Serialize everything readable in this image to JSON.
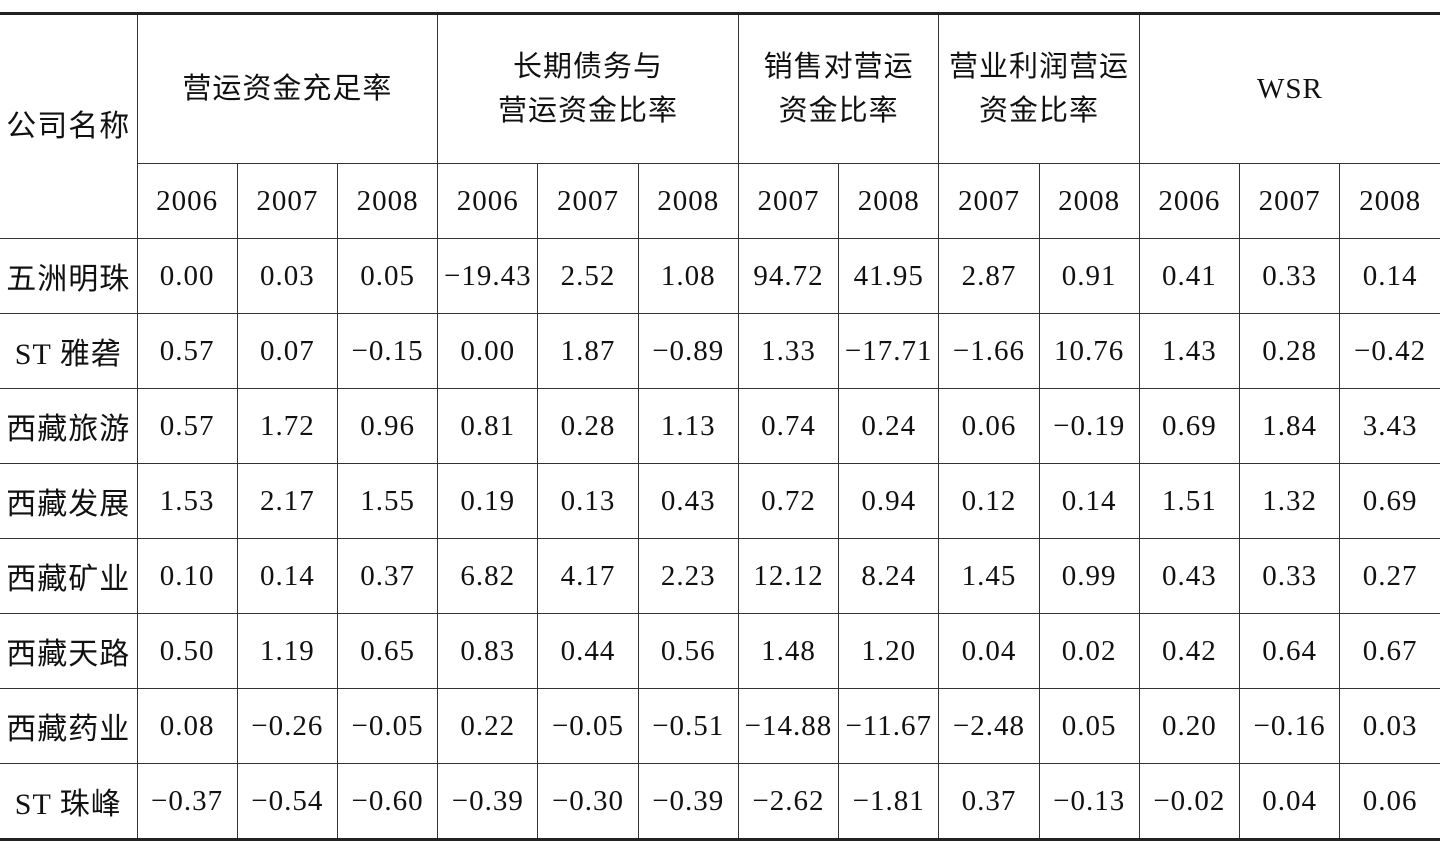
{
  "table": {
    "header": {
      "company": "公司名称",
      "groups": [
        {
          "title": "营运资金充足率",
          "years": [
            "2006",
            "2007",
            "2008"
          ]
        },
        {
          "title": "长期债务与\n营运资金比率",
          "years": [
            "2006",
            "2007",
            "2008"
          ]
        },
        {
          "title": "销售对营运\n资金比率",
          "years": [
            "2007",
            "2008"
          ]
        },
        {
          "title": "营业利润营运\n资金比率",
          "years": [
            "2007",
            "2008"
          ]
        },
        {
          "title": "WSR",
          "years": [
            "2006",
            "2007",
            "2008"
          ]
        }
      ]
    },
    "rows": [
      {
        "name": "五洲明珠",
        "values": [
          "0.00",
          "0.03",
          "0.05",
          "−19.43",
          "2.52",
          "1.08",
          "94.72",
          "41.95",
          "2.87",
          "0.91",
          "0.41",
          "0.33",
          "0.14"
        ]
      },
      {
        "name": "ST 雅砻",
        "values": [
          "0.57",
          "0.07",
          "−0.15",
          "0.00",
          "1.87",
          "−0.89",
          "1.33",
          "−17.71",
          "−1.66",
          "10.76",
          "1.43",
          "0.28",
          "−0.42"
        ]
      },
      {
        "name": "西藏旅游",
        "values": [
          "0.57",
          "1.72",
          "0.96",
          "0.81",
          "0.28",
          "1.13",
          "0.74",
          "0.24",
          "0.06",
          "−0.19",
          "0.69",
          "1.84",
          "3.43"
        ]
      },
      {
        "name": "西藏发展",
        "values": [
          "1.53",
          "2.17",
          "1.55",
          "0.19",
          "0.13",
          "0.43",
          "0.72",
          "0.94",
          "0.12",
          "0.14",
          "1.51",
          "1.32",
          "0.69"
        ]
      },
      {
        "name": "西藏矿业",
        "values": [
          "0.10",
          "0.14",
          "0.37",
          "6.82",
          "4.17",
          "2.23",
          "12.12",
          "8.24",
          "1.45",
          "0.99",
          "0.43",
          "0.33",
          "0.27"
        ]
      },
      {
        "name": "西藏天路",
        "values": [
          "0.50",
          "1.19",
          "0.65",
          "0.83",
          "0.44",
          "0.56",
          "1.48",
          "1.20",
          "0.04",
          "0.02",
          "0.42",
          "0.64",
          "0.67"
        ]
      },
      {
        "name": "西藏药业",
        "values": [
          "0.08",
          "−0.26",
          "−0.05",
          "0.22",
          "−0.05",
          "−0.51",
          "−14.88",
          "−11.67",
          "−2.48",
          "0.05",
          "0.20",
          "−0.16",
          "0.03"
        ]
      },
      {
        "name": "ST 珠峰",
        "values": [
          "−0.37",
          "−0.54",
          "−0.60",
          "−0.39",
          "−0.30",
          "−0.39",
          "−2.62",
          "−1.81",
          "0.37",
          "−0.13",
          "−0.02",
          "0.04",
          "0.06"
        ]
      }
    ]
  }
}
